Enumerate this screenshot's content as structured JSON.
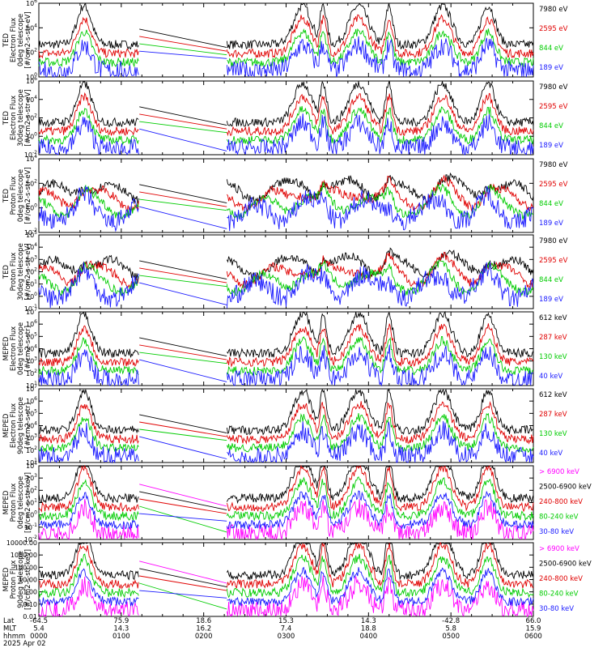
{
  "figure": {
    "date_label": "2025 Apr 02",
    "row_labels": [
      "Lat",
      "MLT",
      "hhmm"
    ]
  },
  "colors": {
    "blue": "#1a1aff",
    "red": "#e00000",
    "green": "#00cc00",
    "black": "#000000",
    "magenta": "#ff00ff"
  },
  "x_axis": {
    "time_range_hours": [
      0,
      6
    ],
    "ticks": [
      {
        "hhmm": "0000",
        "lat": "-64.5",
        "mlt": "5.4"
      },
      {
        "hhmm": "0100",
        "lat": "75.9",
        "mlt": "14.3"
      },
      {
        "hhmm": "0200",
        "lat": "18.6",
        "mlt": "16.2"
      },
      {
        "hhmm": "0300",
        "lat": "15.3",
        "mlt": "7.4"
      },
      {
        "hhmm": "0400",
        "lat": "14.3",
        "mlt": "18.8"
      },
      {
        "hhmm": "0500",
        "lat": "-42.8",
        "mlt": "5.8"
      },
      {
        "hhmm": "0600",
        "lat": "66.0",
        "mlt": "15.9"
      }
    ]
  },
  "chart_data": [
    {
      "type": "line",
      "ylabel": [
        "TED",
        "Electron Flux",
        "0deg telescope",
        "[#/cm2-s-str-eV]"
      ],
      "yscale": "log",
      "ylim_exp": [
        0,
        6
      ],
      "y_ticks": [
        "10^0",
        "10^2",
        "10^4",
        "10^6"
      ],
      "series": [
        {
          "name": "7980 eV",
          "color": "black"
        },
        {
          "name": "2595 eV",
          "color": "red"
        },
        {
          "name": "844 eV",
          "color": "green"
        },
        {
          "name": "189 eV",
          "color": "blue"
        }
      ]
    },
    {
      "type": "line",
      "ylabel": [
        "TED",
        "Electron Flux",
        "30deg telescope",
        "[#/cm2-s-str-eV]"
      ],
      "yscale": "log",
      "ylim_exp": [
        -2,
        6
      ],
      "y_ticks": [
        "10^-2",
        "10^0",
        "10^2",
        "10^4",
        "10^6"
      ],
      "series": [
        {
          "name": "7980 eV",
          "color": "black"
        },
        {
          "name": "2595 eV",
          "color": "red"
        },
        {
          "name": "844 eV",
          "color": "green"
        },
        {
          "name": "189 eV",
          "color": "blue"
        }
      ]
    },
    {
      "type": "line",
      "ylabel": [
        "TED",
        "Proton Flux",
        "0deg telescope",
        "[#/cm2-s-str-eV]"
      ],
      "yscale": "log",
      "ylim_exp": [
        -2,
        5
      ],
      "y_ticks": [
        "10^-2",
        "10^0",
        "10^2",
        "10^4"
      ],
      "series": [
        {
          "name": "7980 eV",
          "color": "black"
        },
        {
          "name": "2595 eV",
          "color": "red"
        },
        {
          "name": "844 eV",
          "color": "green"
        },
        {
          "name": "189 eV",
          "color": "blue"
        }
      ]
    },
    {
      "type": "line",
      "ylabel": [
        "TED",
        "Proton Flux",
        "30deg telescope",
        "[#/cm2-s-str-eV]"
      ],
      "yscale": "log",
      "ylim_exp": [
        -1,
        5
      ],
      "y_ticks": [
        "10^-1",
        "10^0",
        "10^1",
        "10^2",
        "10^3",
        "10^4",
        "10^5"
      ],
      "series": [
        {
          "name": "7980 eV",
          "color": "black"
        },
        {
          "name": "2595 eV",
          "color": "red"
        },
        {
          "name": "844 eV",
          "color": "green"
        },
        {
          "name": "189 eV",
          "color": "blue"
        }
      ]
    },
    {
      "type": "line",
      "ylabel": [
        "MEPED",
        "Electron Flux",
        "0deg telescope",
        "[#/cm2-s-str]"
      ],
      "yscale": "log",
      "ylim_exp": [
        1,
        7
      ],
      "y_ticks": [
        "10^1",
        "10^2",
        "10^3",
        "10^4",
        "10^5",
        "10^6",
        "10^7"
      ],
      "series": [
        {
          "name": "612 keV",
          "color": "black"
        },
        {
          "name": "287 keV",
          "color": "red"
        },
        {
          "name": "130 keV",
          "color": "green"
        },
        {
          "name": "40 keV",
          "color": "blue"
        }
      ]
    },
    {
      "type": "line",
      "ylabel": [
        "MEPED",
        "Electron Flux",
        "90deg telescope",
        "[#/cm2-s-str]"
      ],
      "yscale": "log",
      "ylim_exp": [
        1,
        7
      ],
      "y_ticks": [
        "10^1",
        "10^2",
        "10^3",
        "10^4",
        "10^5",
        "10^6",
        "10^7"
      ],
      "series": [
        {
          "name": "612 keV",
          "color": "black"
        },
        {
          "name": "287 keV",
          "color": "red"
        },
        {
          "name": "130 keV",
          "color": "green"
        },
        {
          "name": "40 keV",
          "color": "blue"
        }
      ]
    },
    {
      "type": "line",
      "ylabel": [
        "MEPED",
        "Proton Flux",
        "0deg telescope",
        "[#/cm2-s-str-keV]"
      ],
      "yscale": "log",
      "ylim_exp": [
        -2,
        4
      ],
      "y_ticks": [
        "10^-2",
        "10^-1",
        "10^0",
        "10^1",
        "10^2",
        "10^3",
        "10^4"
      ],
      "series": [
        {
          "name": "> 6900 keV",
          "color": "magenta"
        },
        {
          "name": "2500-6900 keV",
          "color": "black"
        },
        {
          "name": "240-800 keV",
          "color": "red"
        },
        {
          "name": "80-240 keV",
          "color": "green"
        },
        {
          "name": "30-80 keV",
          "color": "blue"
        }
      ]
    },
    {
      "type": "line",
      "ylabel": [
        "MEPED",
        "Proton Flux",
        "90deg telescope",
        "[#/cm2-s-str-keV]"
      ],
      "yscale": "log",
      "ylim_exp": [
        -2,
        4
      ],
      "y_ticks": [
        "0.01",
        "0.10",
        "1.00",
        "10.00",
        "100.00",
        "1000.00",
        "10000.00"
      ],
      "series": [
        {
          "name": "> 6900 keV",
          "color": "magenta"
        },
        {
          "name": "2500-6900 keV",
          "color": "black"
        },
        {
          "name": "240-800 keV",
          "color": "red"
        },
        {
          "name": "80-240 keV",
          "color": "green"
        },
        {
          "name": "30-80 keV",
          "color": "blue"
        }
      ]
    }
  ]
}
